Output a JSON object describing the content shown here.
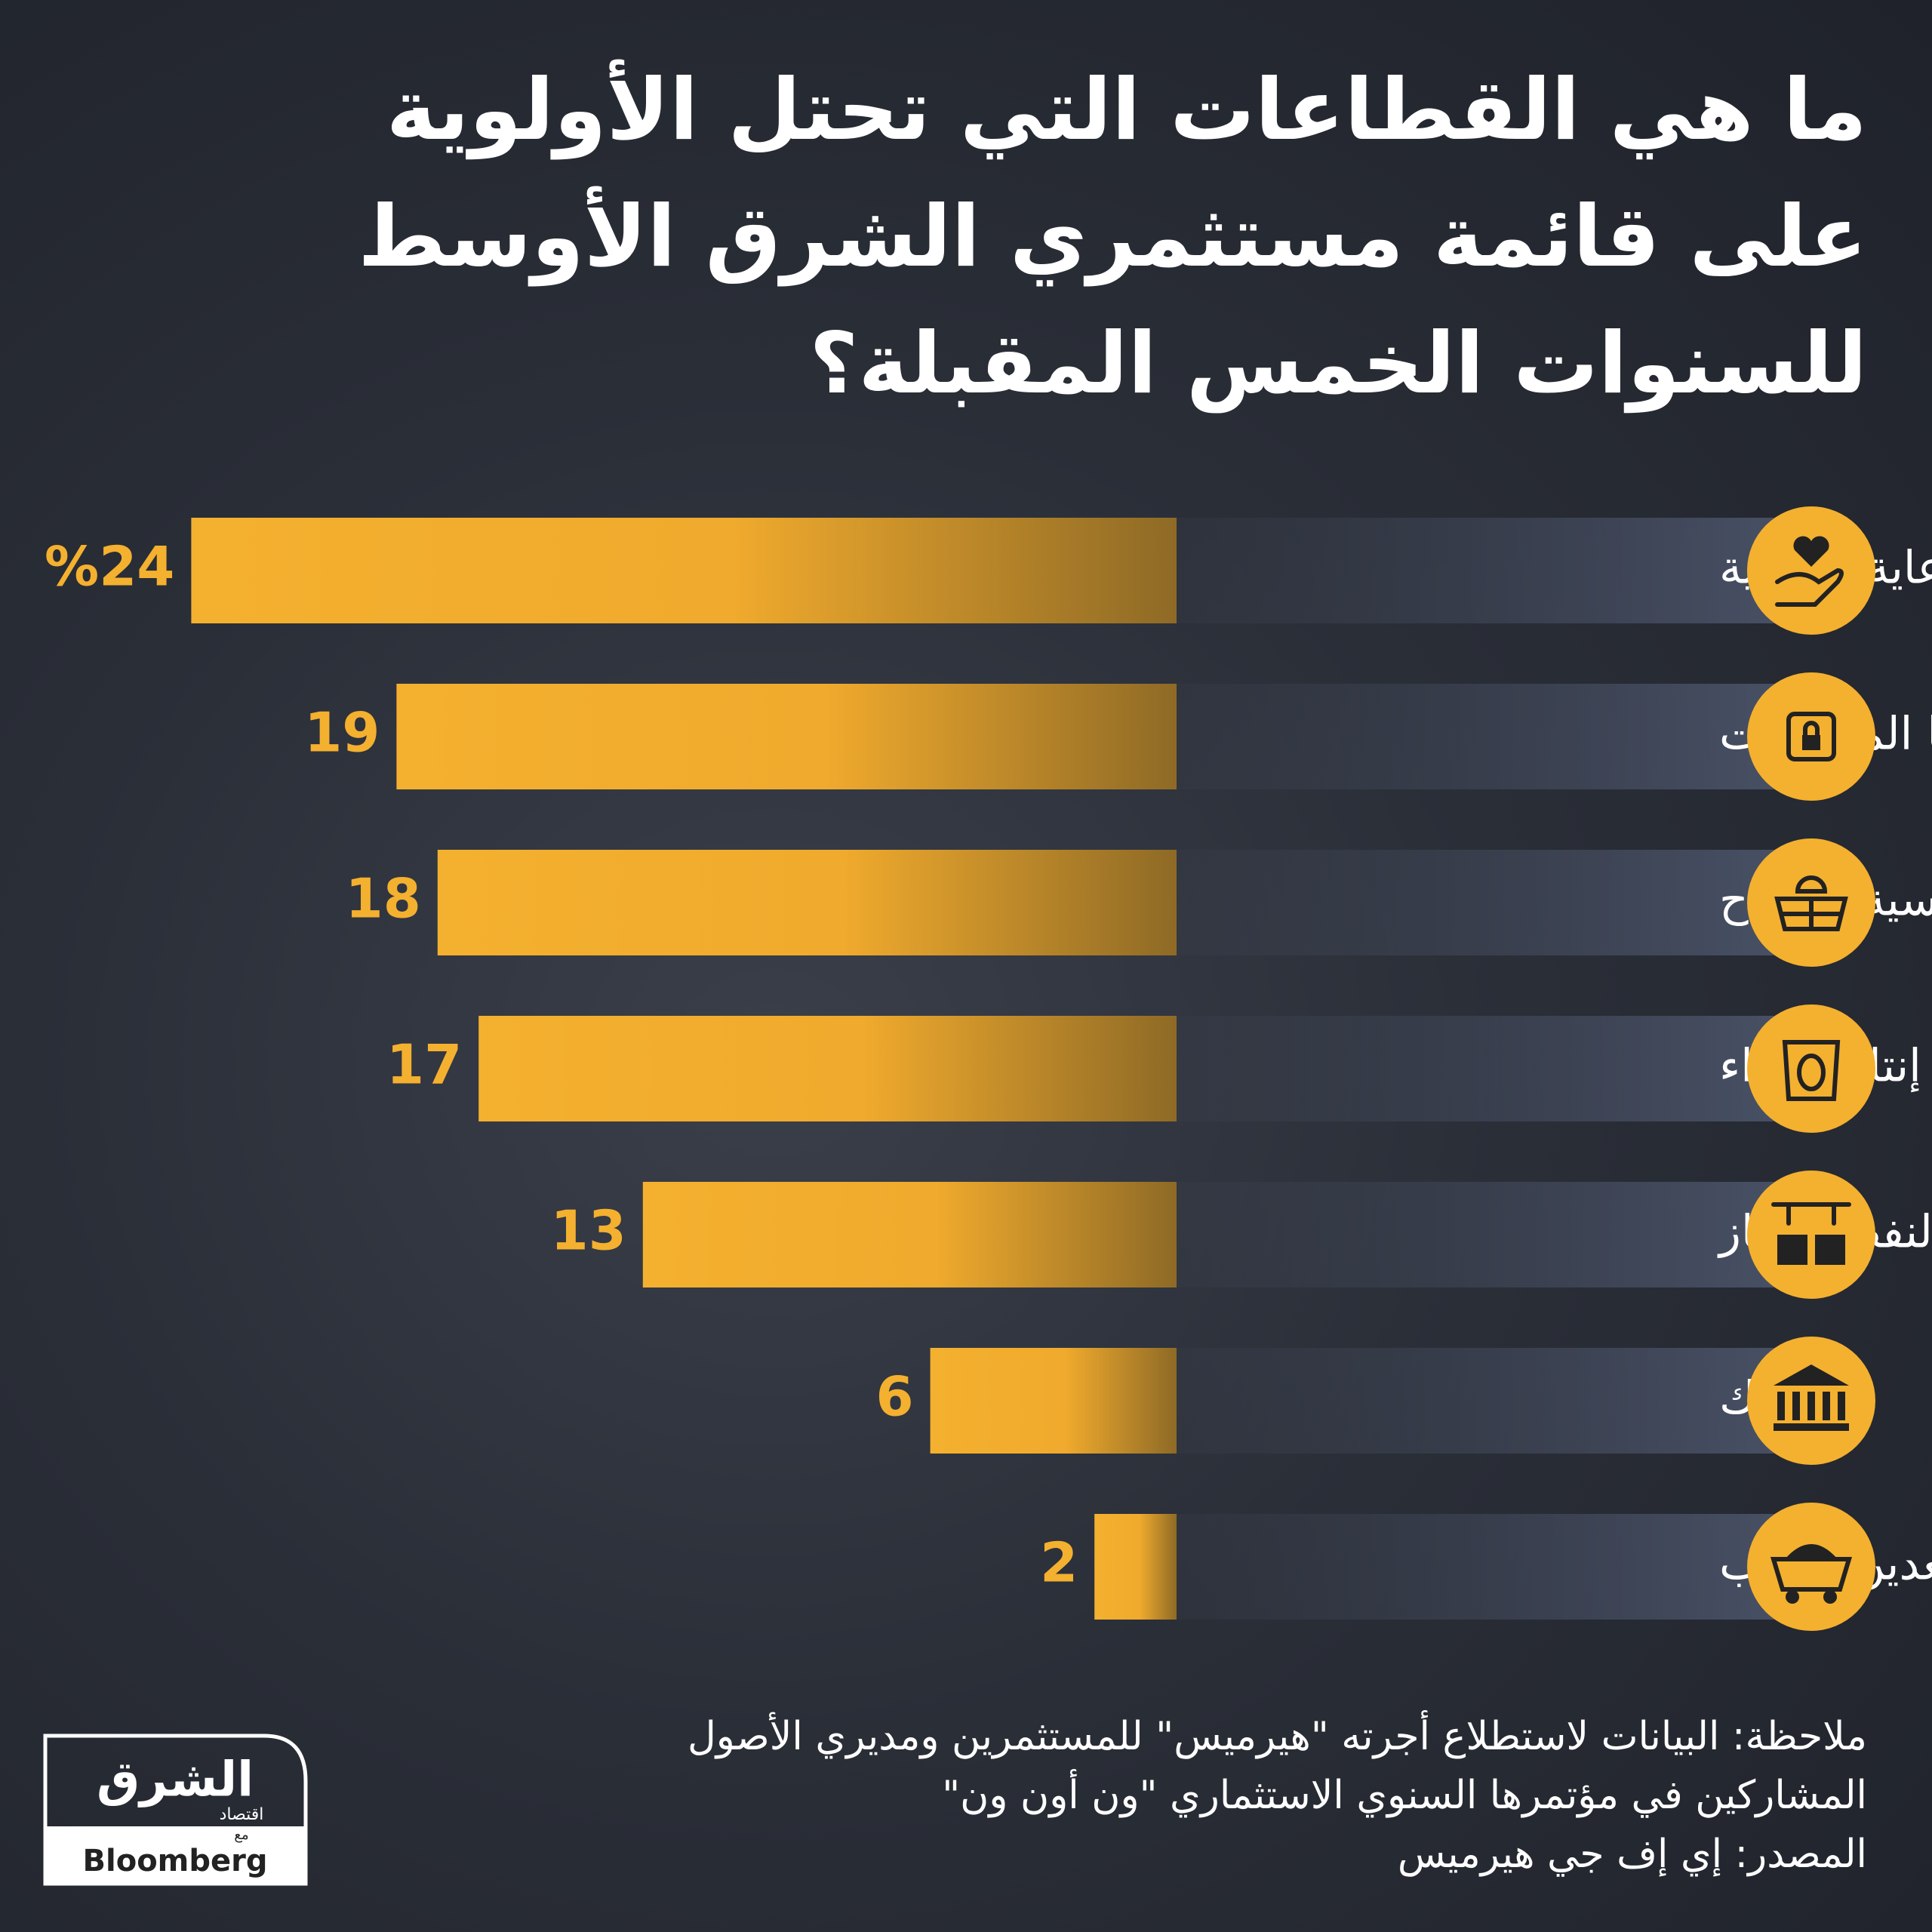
{
  "chart_data": {
    "type": "bar",
    "title": "ما هي القطاعات التي تحتل الأولوية على قائمة مستثمري الشرق الأوسط للسنوات الخمس المقبلة؟",
    "categories": [
      "الرعاية الصحية",
      "تكنولوجيا المعلومات",
      "الطاقة الشمسية والرياح",
      "إنتاج الغذاء",
      "إنتاج النفط والغاز",
      "البنوك",
      "تعدين الذهب"
    ],
    "values": [
      24,
      19,
      18,
      17,
      13,
      6,
      2
    ],
    "value_labels": [
      "%24",
      "19",
      "18",
      "17",
      "13",
      "6",
      "2"
    ],
    "color": "#f4b02f",
    "note": "ملاحظة: البيانات لاستطلاع أجرته \"هيرميس\" للمستثمرين ومديري الأصول المشاركين في مؤتمرها السنوي الاستثماري \"ون أون ون\"",
    "source": "المصدر: إي إف جي هيرميس"
  },
  "logo": {
    "name": "الشرق",
    "sub": "اقتصاد",
    "with": "مع",
    "partner": "Bloomberg"
  }
}
